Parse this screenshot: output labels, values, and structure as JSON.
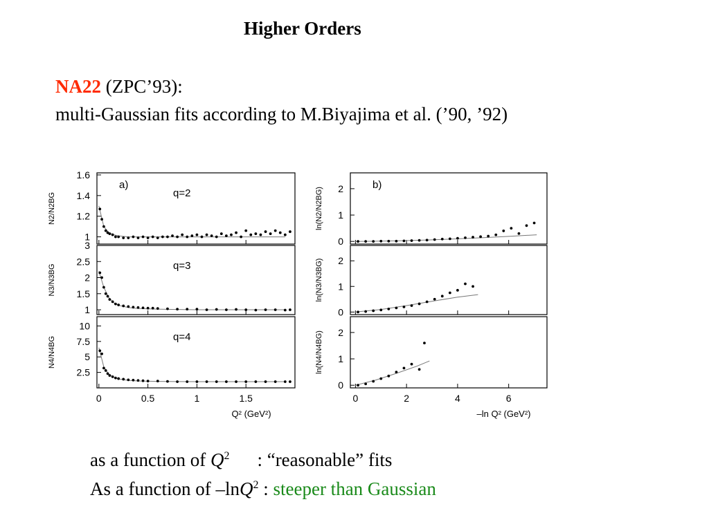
{
  "slide": {
    "title": "Higher Orders",
    "line1_accent": "NA22",
    "line1_rest": " (ZPC’93):",
    "line2": "multi-Gaussian fits according to M.Biyajima et al. (’90, ’92)",
    "bottom1_pre": "as a function of ",
    "bottom1_var": "Q",
    "bottom1_sup": "2",
    "bottom1_post": ":  “reasonable” fits",
    "bottom2_pre": "As a function of –ln",
    "bottom2_var": "Q",
    "bottom2_sup": "2",
    "bottom2_colon": " :  ",
    "bottom2_green": "steeper than Gaussian"
  },
  "colors": {
    "accent_red": "#ff2a00",
    "green": "#1a8a1a",
    "text": "#000000",
    "fit_line": "#777777"
  },
  "chart_data": [
    {
      "type": "scatter",
      "panel": "a)",
      "annotation": "q=2",
      "ylabel": "N2/N2BG",
      "ylim": [
        0.93,
        1.62
      ],
      "yticks": [
        1,
        1.2,
        1.4,
        1.6
      ],
      "xlim": [
        -0.02,
        2.0
      ],
      "x": [
        0.01,
        0.03,
        0.05,
        0.07,
        0.09,
        0.11,
        0.14,
        0.17,
        0.2,
        0.25,
        0.3,
        0.35,
        0.4,
        0.45,
        0.5,
        0.55,
        0.6,
        0.65,
        0.7,
        0.75,
        0.8,
        0.85,
        0.9,
        0.95,
        1.0,
        1.05,
        1.1,
        1.15,
        1.2,
        1.25,
        1.3,
        1.35,
        1.4,
        1.45,
        1.5,
        1.55,
        1.6,
        1.65,
        1.7,
        1.75,
        1.8,
        1.85,
        1.9,
        1.95
      ],
      "y": [
        1.27,
        1.17,
        1.1,
        1.06,
        1.04,
        1.03,
        1.02,
        1.0,
        1.0,
        0.99,
        0.99,
        1.0,
        0.99,
        1.0,
        0.99,
        1.0,
        0.99,
        1.0,
        1.0,
        1.01,
        1.0,
        1.02,
        1.0,
        1.01,
        1.02,
        1.0,
        1.02,
        1.01,
        1.0,
        1.03,
        1.01,
        1.02,
        1.04,
        1.0,
        1.06,
        1.02,
        1.03,
        1.02,
        1.05,
        1.03,
        1.06,
        1.04,
        1.02,
        1.05
      ],
      "fit": {
        "x": [
          0.0,
          0.05,
          0.1,
          0.15,
          0.2,
          0.3,
          0.4,
          0.6,
          0.8,
          1.0,
          1.3,
          1.6,
          1.9
        ],
        "y": [
          1.3,
          1.1,
          1.04,
          1.02,
          1.01,
          1.0,
          1.0,
          1.0,
          1.0,
          1.0,
          1.0,
          1.0,
          1.0
        ]
      }
    },
    {
      "type": "scatter",
      "panel": "",
      "annotation": "q=3",
      "ylabel": "N3/N3BG",
      "ylim": [
        0.85,
        3.0
      ],
      "yticks": [
        1,
        1.5,
        2,
        2.5,
        3
      ],
      "xlim": [
        -0.02,
        2.0
      ],
      "x": [
        0.01,
        0.03,
        0.05,
        0.07,
        0.09,
        0.11,
        0.14,
        0.17,
        0.2,
        0.25,
        0.3,
        0.35,
        0.4,
        0.45,
        0.5,
        0.55,
        0.6,
        0.7,
        0.8,
        0.9,
        1.0,
        1.1,
        1.2,
        1.3,
        1.4,
        1.5,
        1.6,
        1.7,
        1.8,
        1.9,
        1.95
      ],
      "y": [
        2.15,
        2.0,
        1.7,
        1.5,
        1.42,
        1.32,
        1.25,
        1.18,
        1.15,
        1.12,
        1.1,
        1.08,
        1.07,
        1.06,
        1.05,
        1.05,
        1.04,
        1.03,
        1.02,
        1.02,
        1.02,
        1.0,
        1.01,
        1.0,
        1.01,
        1.0,
        0.99,
        1.0,
        1.0,
        0.99,
        1.0
      ],
      "fit": {
        "x": [
          0.0,
          0.05,
          0.1,
          0.15,
          0.2,
          0.3,
          0.4,
          0.6,
          0.8,
          1.0,
          1.3,
          1.6,
          1.9
        ],
        "y": [
          2.2,
          1.7,
          1.38,
          1.22,
          1.14,
          1.07,
          1.04,
          1.02,
          1.01,
          1.0,
          1.0,
          1.0,
          1.0
        ]
      }
    },
    {
      "type": "scatter",
      "panel": "",
      "annotation": "q=4",
      "ylabel": "N4/N4BG",
      "ylim": [
        0.0,
        11.5
      ],
      "yticks": [
        2.5,
        5,
        7.5,
        10
      ],
      "xlabel": "Q² (GeV²)",
      "xticks": [
        0,
        0.5,
        1,
        1.5
      ],
      "xlim": [
        -0.02,
        2.0
      ],
      "x": [
        0.01,
        0.03,
        0.05,
        0.07,
        0.09,
        0.11,
        0.14,
        0.17,
        0.2,
        0.25,
        0.3,
        0.35,
        0.4,
        0.45,
        0.5,
        0.6,
        0.7,
        0.8,
        0.9,
        1.0,
        1.1,
        1.2,
        1.3,
        1.4,
        1.5,
        1.6,
        1.7,
        1.8,
        1.9,
        1.95
      ],
      "y": [
        6.0,
        5.5,
        3.2,
        2.8,
        2.3,
        2.0,
        1.8,
        1.6,
        1.5,
        1.4,
        1.3,
        1.25,
        1.2,
        1.15,
        1.1,
        1.1,
        1.05,
        1.0,
        1.0,
        1.0,
        1.0,
        1.0,
        1.0,
        1.0,
        1.0,
        1.0,
        1.0,
        1.0,
        1.0,
        1.0
      ],
      "fit": {
        "x": [
          0.0,
          0.05,
          0.1,
          0.15,
          0.2,
          0.3,
          0.4,
          0.6,
          0.8,
          1.0,
          1.3,
          1.6,
          1.9
        ],
        "y": [
          6.5,
          3.4,
          2.2,
          1.7,
          1.45,
          1.22,
          1.12,
          1.05,
          1.02,
          1.0,
          1.0,
          1.0,
          1.0
        ]
      }
    },
    {
      "type": "scatter",
      "panel": "b)",
      "annotation": "",
      "ylabel": "ln(N2/N2BG)",
      "ylim": [
        -0.1,
        2.6
      ],
      "yticks": [
        0,
        1,
        2
      ],
      "xlim": [
        -0.2,
        7.5
      ],
      "x": [
        0.1,
        0.4,
        0.7,
        1.0,
        1.3,
        1.6,
        1.9,
        2.2,
        2.5,
        2.8,
        3.1,
        3.4,
        3.7,
        4.0,
        4.3,
        4.6,
        4.9,
        5.2,
        5.5,
        5.8,
        6.1,
        6.4,
        6.7,
        7.0
      ],
      "y": [
        0.0,
        0.0,
        0.0,
        0.01,
        0.01,
        0.01,
        0.02,
        0.03,
        0.04,
        0.05,
        0.07,
        0.09,
        0.1,
        0.12,
        0.14,
        0.16,
        0.18,
        0.2,
        0.25,
        0.4,
        0.5,
        0.3,
        0.6,
        0.7
      ],
      "fit": {
        "x": [
          0.0,
          1.0,
          2.0,
          3.0,
          4.0,
          5.0,
          6.0,
          7.1
        ],
        "y": [
          0.0,
          0.01,
          0.03,
          0.06,
          0.1,
          0.14,
          0.19,
          0.25
        ]
      }
    },
    {
      "type": "scatter",
      "panel": "",
      "annotation": "",
      "ylabel": "ln(N3/N3BG)",
      "ylim": [
        -0.1,
        2.6
      ],
      "yticks": [
        0,
        1,
        2
      ],
      "xlim": [
        -0.2,
        7.5
      ],
      "x": [
        0.1,
        0.4,
        0.7,
        1.0,
        1.3,
        1.6,
        1.9,
        2.2,
        2.5,
        2.8,
        3.1,
        3.4,
        3.7,
        4.0,
        4.3,
        4.6
      ],
      "y": [
        0.0,
        0.02,
        0.05,
        0.08,
        0.12,
        0.16,
        0.2,
        0.25,
        0.32,
        0.4,
        0.5,
        0.62,
        0.75,
        0.85,
        1.1,
        1.0
      ],
      "fit": {
        "x": [
          0.0,
          1.0,
          2.0,
          3.0,
          4.0,
          4.8
        ],
        "y": [
          0.0,
          0.1,
          0.25,
          0.42,
          0.58,
          0.68
        ]
      }
    },
    {
      "type": "scatter",
      "panel": "",
      "annotation": "",
      "ylabel": "ln(N4/N4BG)",
      "ylim": [
        -0.1,
        2.6
      ],
      "yticks": [
        0,
        1,
        2
      ],
      "xlabel": "–ln Q² (GeV²)",
      "xticks": [
        0,
        2,
        4,
        6
      ],
      "xlim": [
        -0.2,
        7.5
      ],
      "x": [
        0.1,
        0.4,
        0.7,
        1.0,
        1.3,
        1.6,
        1.9,
        2.2,
        2.5,
        2.7
      ],
      "y": [
        0.0,
        0.05,
        0.15,
        0.25,
        0.35,
        0.5,
        0.65,
        0.8,
        0.6,
        1.6
      ],
      "fit": {
        "x": [
          0.0,
          0.8,
          1.6,
          2.4,
          2.9
        ],
        "y": [
          0.0,
          0.2,
          0.45,
          0.72,
          0.92
        ]
      }
    }
  ]
}
